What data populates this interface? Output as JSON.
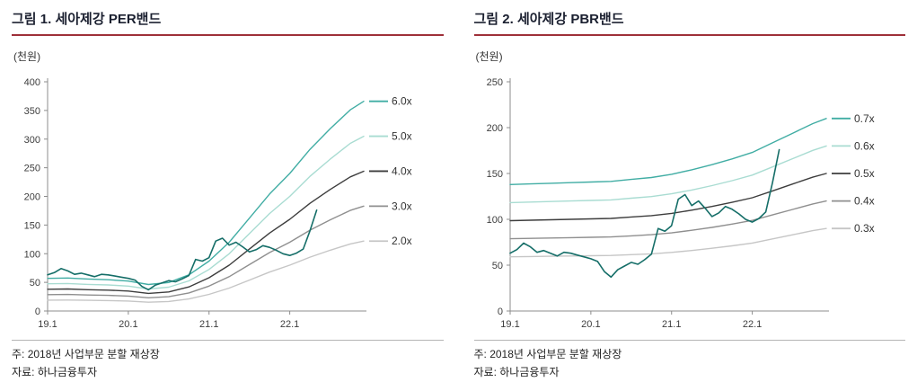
{
  "styles": {
    "background": "#ffffff",
    "title_color": "#1b2030",
    "title_underline_color": "#9e3039",
    "axis_color": "#8c8c8c",
    "tick_text_color": "#3d3d3d",
    "footer_divider_color": "#b5b5b5",
    "footer_text_color": "#222222",
    "band_teal": "#41ada4",
    "band_mint": "#a9dcd2",
    "band_dark": "#3d3d3d",
    "band_gray": "#8f8f8f",
    "band_lightgray": "#c6c6c6",
    "price_color": "#156e68"
  },
  "charts": [
    {
      "title": "그림 1. 세아제강 PER밴드",
      "unit_label": "(천원)",
      "note": "주: 2018년 사업부문 분할 재상장",
      "source": "자료: 하나금융투자",
      "chart_data": {
        "type": "line",
        "title": "세아제강 PER밴드",
        "ylabel": "(천원)",
        "ylim": [
          0,
          400
        ],
        "yticks": [
          0,
          50,
          100,
          150,
          200,
          250,
          300,
          350,
          400
        ],
        "x_axis": {
          "description": "months since 2019-01",
          "max": 47,
          "ticks": [
            {
              "pos": 0,
              "label": "19.1"
            },
            {
              "pos": 12,
              "label": "20.1"
            },
            {
              "pos": 24,
              "label": "21.1"
            },
            {
              "pos": 36,
              "label": "22.1"
            }
          ]
        },
        "legend_position": "line-end-right",
        "series": [
          {
            "name": "PER 6.0x band",
            "label": "6.0x",
            "color": "#41ada4",
            "width": 1.4,
            "x": [
              0,
              3,
              6,
              9,
              12,
              15,
              18,
              21,
              24,
              27,
              30,
              33,
              36,
              39,
              42,
              45,
              47
            ],
            "values": [
              57,
              57.6,
              55.8,
              54.6,
              52.2,
              46.2,
              49.8,
              63,
              87,
              120,
              162,
              204,
              240,
              282,
              318,
              351,
              366
            ]
          },
          {
            "name": "PER 5.0x band",
            "label": "5.0x",
            "color": "#a9dcd2",
            "width": 1.4,
            "x": [
              0,
              3,
              6,
              9,
              12,
              15,
              18,
              21,
              24,
              27,
              30,
              33,
              36,
              39,
              42,
              45,
              47
            ],
            "values": [
              47.5,
              48,
              46.5,
              45.5,
              43.5,
              38.5,
              41.5,
              52.5,
              72.5,
              100,
              135,
              170,
              200,
              235,
              265,
              292.5,
              305
            ]
          },
          {
            "name": "PER 4.0x band",
            "label": "4.0x",
            "color": "#3d3d3d",
            "width": 1.4,
            "x": [
              0,
              3,
              6,
              9,
              12,
              15,
              18,
              21,
              24,
              27,
              30,
              33,
              36,
              39,
              42,
              45,
              47
            ],
            "values": [
              38,
              38.4,
              37.2,
              36.4,
              34.8,
              30.8,
              33.2,
              42,
              58,
              80,
              108,
              136,
              160,
              188,
              212,
              234,
              244
            ]
          },
          {
            "name": "PER 3.0x band",
            "label": "3.0x",
            "color": "#8f8f8f",
            "width": 1.4,
            "x": [
              0,
              3,
              6,
              9,
              12,
              15,
              18,
              21,
              24,
              27,
              30,
              33,
              36,
              39,
              42,
              45,
              47
            ],
            "values": [
              28.5,
              28.8,
              27.9,
              27.3,
              26.1,
              23.1,
              24.9,
              31.5,
              43.5,
              60,
              81,
              102,
              120,
              141,
              159,
              175.5,
              183
            ]
          },
          {
            "name": "PER 2.0x band",
            "label": "2.0x",
            "color": "#c6c6c6",
            "width": 1.4,
            "x": [
              0,
              3,
              6,
              9,
              12,
              15,
              18,
              21,
              24,
              27,
              30,
              33,
              36,
              39,
              42,
              45,
              47
            ],
            "values": [
              19,
              19.2,
              18.6,
              18.2,
              17.4,
              15.4,
              16.6,
              21,
              29,
              40,
              54,
              68,
              80,
              94,
              106,
              117,
              122
            ]
          },
          {
            "name": "주가",
            "label": null,
            "color": "#156e68",
            "width": 1.6,
            "x": [
              0,
              1,
              2,
              3,
              4,
              5,
              6,
              7,
              8,
              9,
              10,
              11,
              12,
              13,
              14,
              15,
              16,
              17,
              18,
              19,
              20,
              21,
              22,
              23,
              24,
              25,
              26,
              27,
              28,
              29,
              30,
              31,
              32,
              33,
              34,
              35,
              36,
              37,
              38,
              39,
              40
            ],
            "values": [
              63,
              67,
              74,
              70,
              64,
              66,
              63,
              60,
              64,
              63,
              61,
              59,
              57,
              54,
              43,
              37,
              45,
              49,
              53,
              51,
              56,
              62,
              90,
              87,
              93,
              122,
              127,
              115,
              120,
              112,
              103,
              107,
              114,
              111,
              106,
              100,
              97,
              101,
              108,
              140,
              176
            ]
          }
        ]
      }
    },
    {
      "title": "그림 2. 세아제강 PBR밴드",
      "unit_label": "(천원)",
      "note": "주: 2018년 사업부문 분할 재상장",
      "source": "자료: 하나금융투자",
      "chart_data": {
        "type": "line",
        "title": "세아제강 PBR밴드",
        "ylabel": "(천원)",
        "ylim": [
          0,
          250
        ],
        "yticks": [
          0,
          50,
          100,
          150,
          200,
          250
        ],
        "x_axis": {
          "description": "months since 2019-01",
          "max": 47,
          "ticks": [
            {
              "pos": 0,
              "label": "19.1"
            },
            {
              "pos": 12,
              "label": "20.1"
            },
            {
              "pos": 24,
              "label": "21.1"
            },
            {
              "pos": 36,
              "label": "22.1"
            }
          ]
        },
        "legend_position": "line-end-right",
        "series": [
          {
            "name": "PBR 0.7x band",
            "label": "0.7x",
            "color": "#41ada4",
            "width": 1.4,
            "x": [
              0,
              3,
              6,
              9,
              12,
              15,
              18,
              21,
              24,
              27,
              30,
              33,
              36,
              39,
              42,
              45,
              47
            ],
            "values": [
              137.9,
              138.6,
              139.3,
              140,
              140.7,
              141.4,
              143.5,
              145.6,
              149.1,
              154,
              159.6,
              165.9,
              172.9,
              183.4,
              193.9,
              204.4,
              210
            ]
          },
          {
            "name": "PBR 0.6x band",
            "label": "0.6x",
            "color": "#a9dcd2",
            "width": 1.4,
            "x": [
              0,
              3,
              6,
              9,
              12,
              15,
              18,
              21,
              24,
              27,
              30,
              33,
              36,
              39,
              42,
              45,
              47
            ],
            "values": [
              118.2,
              118.8,
              119.4,
              120,
              120.6,
              121.2,
              123,
              124.8,
              127.8,
              132,
              136.8,
              142.2,
              148.2,
              157.2,
              166.2,
              175.2,
              180
            ]
          },
          {
            "name": "PBR 0.5x band",
            "label": "0.5x",
            "color": "#3d3d3d",
            "width": 1.4,
            "x": [
              0,
              3,
              6,
              9,
              12,
              15,
              18,
              21,
              24,
              27,
              30,
              33,
              36,
              39,
              42,
              45,
              47
            ],
            "values": [
              98.5,
              99,
              99.5,
              100,
              100.5,
              101,
              102.5,
              104,
              106.5,
              110,
              114,
              118.5,
              123.5,
              131,
              138.5,
              146,
              150
            ]
          },
          {
            "name": "PBR 0.4x band",
            "label": "0.4x",
            "color": "#8f8f8f",
            "width": 1.4,
            "x": [
              0,
              3,
              6,
              9,
              12,
              15,
              18,
              21,
              24,
              27,
              30,
              33,
              36,
              39,
              42,
              45,
              47
            ],
            "values": [
              78.8,
              79.2,
              79.6,
              80,
              80.4,
              80.8,
              82,
              83.2,
              85.2,
              88,
              91.2,
              94.8,
              98.8,
              104.8,
              110.8,
              116.8,
              120
            ]
          },
          {
            "name": "PBR 0.3x band",
            "label": "0.3x",
            "color": "#c6c6c6",
            "width": 1.4,
            "x": [
              0,
              3,
              6,
              9,
              12,
              15,
              18,
              21,
              24,
              27,
              30,
              33,
              36,
              39,
              42,
              45,
              47
            ],
            "values": [
              59.1,
              59.4,
              59.7,
              60,
              60.3,
              60.6,
              61.5,
              62.4,
              63.9,
              66,
              68.4,
              71.1,
              74.1,
              78.6,
              83.1,
              87.6,
              90
            ]
          },
          {
            "name": "주가",
            "label": null,
            "color": "#156e68",
            "width": 1.6,
            "x": [
              0,
              1,
              2,
              3,
              4,
              5,
              6,
              7,
              8,
              9,
              10,
              11,
              12,
              13,
              14,
              15,
              16,
              17,
              18,
              19,
              20,
              21,
              22,
              23,
              24,
              25,
              26,
              27,
              28,
              29,
              30,
              31,
              32,
              33,
              34,
              35,
              36,
              37,
              38,
              39,
              40
            ],
            "values": [
              63,
              67,
              74,
              70,
              64,
              66,
              63,
              60,
              64,
              63,
              61,
              59,
              57,
              54,
              43,
              37,
              45,
              49,
              53,
              51,
              56,
              62,
              90,
              87,
              93,
              122,
              127,
              115,
              120,
              112,
              103,
              107,
              114,
              111,
              106,
              100,
              97,
              101,
              108,
              140,
              176
            ]
          }
        ]
      }
    }
  ]
}
